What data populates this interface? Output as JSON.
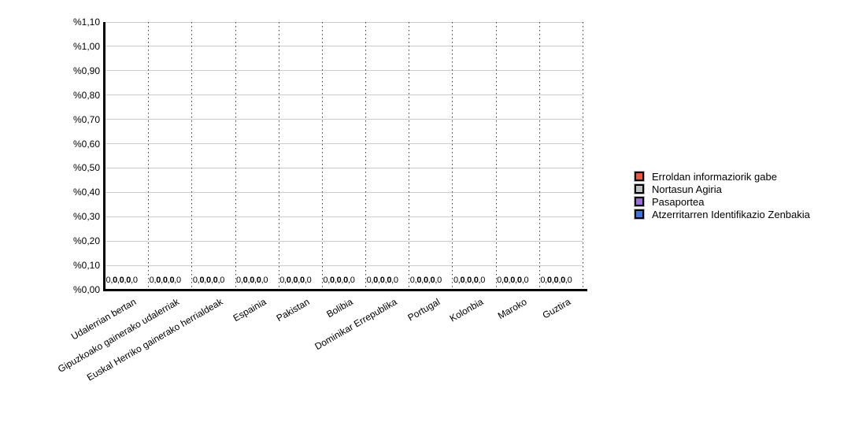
{
  "chart_data": {
    "type": "bar",
    "title": "",
    "xlabel": "",
    "ylabel": "",
    "categories": [
      "Udalerrian bertan",
      "Gipuzkoako gainerako udalerriak",
      "Euskal Herriko gainerako herrialdeak",
      "Espainia",
      "Pakistan",
      "Bolibia",
      "Dominikar Errepublika",
      "Portugal",
      "Kolonbia",
      "Maroko",
      "Guztira"
    ],
    "series": [
      {
        "name": "Erroldan informaziorik gabe",
        "color": "#eb583d",
        "values": [
          0,
          0,
          0,
          0,
          0,
          0,
          0,
          0,
          0,
          0,
          0
        ],
        "value_label": "0,0"
      },
      {
        "name": "Nortasun Agiria",
        "color": "#c0c0c0",
        "values": [
          0,
          0,
          0,
          0,
          0,
          0,
          0,
          0,
          0,
          0,
          0
        ],
        "value_label": "0,0"
      },
      {
        "name": "Pasaportea",
        "color": "#9b6edc",
        "values": [
          0,
          0,
          0,
          0,
          0,
          0,
          0,
          0,
          0,
          0,
          0
        ],
        "value_label": "0,0"
      },
      {
        "name": "Atzerritarren Identifikazio Zenbakia",
        "color": "#3c76d9",
        "values": [
          0,
          0,
          0,
          0,
          0,
          0,
          0,
          0,
          0,
          0,
          0
        ],
        "value_label": "0,0"
      }
    ],
    "y_axis": {
      "min": 0,
      "max": 1.1,
      "step": 0.1,
      "tick_labels": [
        "%1,10",
        "%1,00",
        "%0,90",
        "%0,80",
        "%0,70",
        "%0,60",
        "%0,50",
        "%0,40",
        "%0,30",
        "%0,20",
        "%0,10",
        "%0,00"
      ]
    },
    "legend_position": "right",
    "grid": {
      "horizontal": "solid-gray",
      "vertical": "dotted-black"
    },
    "colors": {
      "background": "#ffffff",
      "gridline": "#cccccc",
      "axis": "#000000",
      "text": "#000000"
    }
  }
}
